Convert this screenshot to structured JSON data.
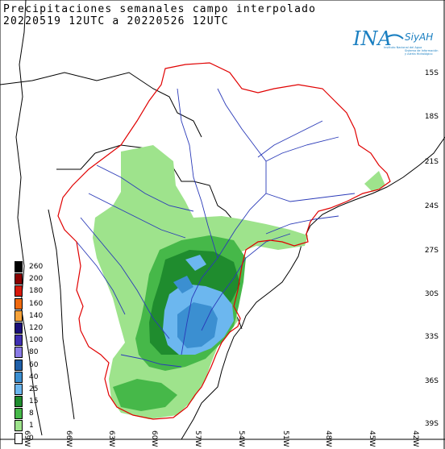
{
  "title": {
    "line1": "Precipitaciones semanales campo interpolado",
    "line2": "20220519 12UTC a 20220526 12UTC"
  },
  "logo": {
    "main": "INA",
    "sub": "SiyAH",
    "tag1": "Instituto Nacional del Agua",
    "tag2": "Sistema de Información",
    "tag3": "y Alerta Hidrológico"
  },
  "lat_ticks": [
    "15S",
    "18S",
    "21S",
    "24S",
    "27S",
    "30S",
    "33S",
    "36S",
    "39S"
  ],
  "lon_ticks": [
    "69W",
    "66W",
    "63W",
    "60W",
    "57W",
    "54W",
    "51W",
    "48W",
    "45W",
    "42W"
  ],
  "legend": {
    "items": [
      {
        "value": "260",
        "color": "#000000"
      },
      {
        "value": "200",
        "color": "#8b0000"
      },
      {
        "value": "180",
        "color": "#d81a0b"
      },
      {
        "value": "160",
        "color": "#f06a0f"
      },
      {
        "value": "140",
        "color": "#f7a33a"
      },
      {
        "value": "120",
        "color": "#1a0f7a"
      },
      {
        "value": "100",
        "color": "#3f2fb3"
      },
      {
        "value": "80",
        "color": "#8a7be6"
      },
      {
        "value": "60",
        "color": "#1f5fa8"
      },
      {
        "value": "40",
        "color": "#3b8fd1"
      },
      {
        "value": "25",
        "color": "#6cb7ef"
      },
      {
        "value": "15",
        "color": "#1f8c2e"
      },
      {
        "value": "8",
        "color": "#46b849"
      },
      {
        "value": "1",
        "color": "#9ee38c"
      },
      {
        "value": "0",
        "color": "#ffffff"
      }
    ]
  },
  "colors": {
    "basin_border": "#e00000",
    "rivers": "#2a3ab8",
    "country_borders": "#000000"
  }
}
